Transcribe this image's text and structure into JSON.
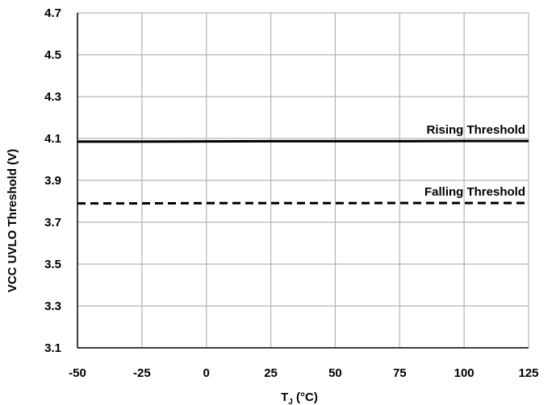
{
  "chart_data": {
    "type": "line",
    "title": "",
    "xlabel": {
      "main": "T",
      "sub": "J",
      "unit": " (°C)"
    },
    "ylabel": "VCC UVLO Threshold (V)",
    "xlim": [
      -50,
      125
    ],
    "ylim": [
      3.1,
      4.7
    ],
    "xticks": [
      -50,
      -25,
      0,
      25,
      50,
      75,
      100,
      125
    ],
    "yticks": [
      3.1,
      3.3,
      3.5,
      3.7,
      3.9,
      4.1,
      4.3,
      4.5,
      4.7
    ],
    "xtick_labels": [
      "-50",
      "-25",
      "0",
      "25",
      "50",
      "75",
      "100",
      "125"
    ],
    "ytick_labels": [
      "3.1",
      "3.3",
      "3.5",
      "3.7",
      "3.9",
      "4.1",
      "4.3",
      "4.5",
      "4.7"
    ],
    "grid": true,
    "legend": "none",
    "series": [
      {
        "name": "Rising Threshold",
        "style": "solid",
        "color": "#000000",
        "x": [
          -50,
          -25,
          0,
          25,
          50,
          75,
          100,
          125
        ],
        "y": [
          4.085,
          4.085,
          4.086,
          4.087,
          4.087,
          4.087,
          4.088,
          4.088
        ]
      },
      {
        "name": "Falling Threshold",
        "style": "dashed",
        "color": "#000000",
        "x": [
          -50,
          -25,
          0,
          25,
          50,
          75,
          100,
          125
        ],
        "y": [
          3.79,
          3.79,
          3.791,
          3.791,
          3.791,
          3.792,
          3.792,
          3.792
        ]
      }
    ]
  }
}
